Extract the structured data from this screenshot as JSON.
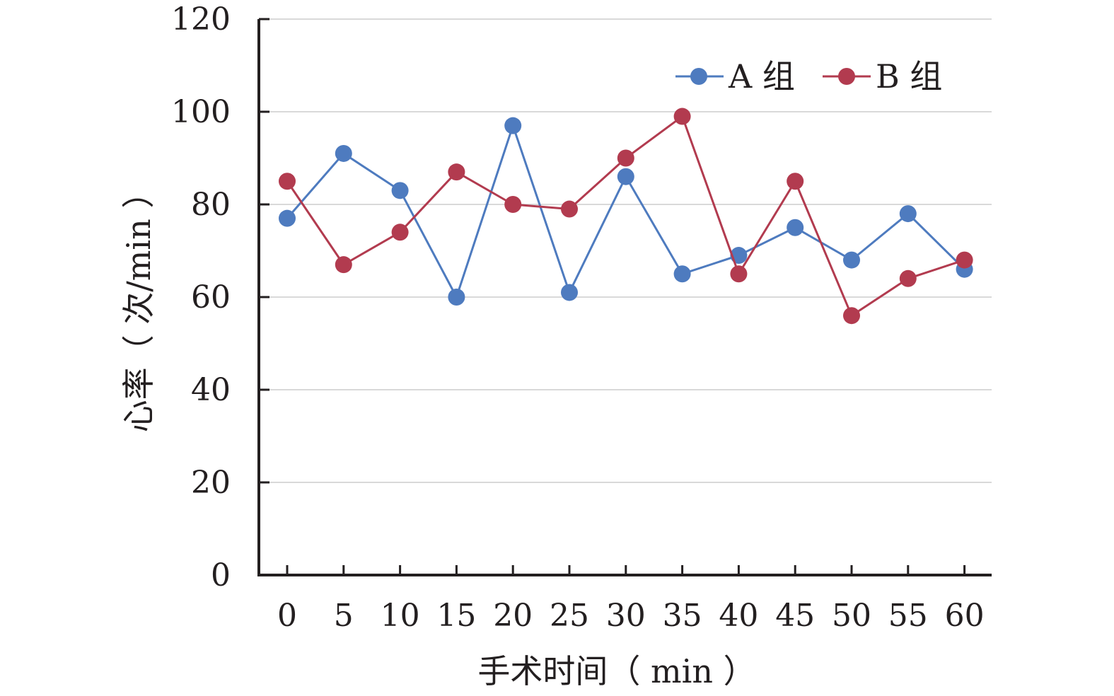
{
  "chart_data": {
    "type": "line",
    "x": [
      0,
      5,
      10,
      15,
      20,
      25,
      30,
      35,
      40,
      45,
      50,
      55,
      60
    ],
    "xtick_labels": [
      "0",
      "5",
      "10",
      "15",
      "20",
      "25",
      "30",
      "35",
      "40",
      "45",
      "50",
      "55",
      "60"
    ],
    "series": [
      {
        "name": "A 组",
        "color": "#4e7bbf",
        "values": [
          77,
          91,
          83,
          60,
          97,
          61,
          86,
          65,
          69,
          75,
          68,
          78,
          66
        ]
      },
      {
        "name": "B 组",
        "color": "#b23b4f",
        "values": [
          85,
          67,
          74,
          87,
          80,
          79,
          90,
          99,
          65,
          85,
          56,
          64,
          68
        ]
      }
    ],
    "xlabel": "手术时间（ min ）",
    "ylabel": "心率（ 次/min ）",
    "ylim": [
      0,
      120
    ],
    "yticks": [
      0,
      20,
      40,
      60,
      80,
      100,
      120
    ],
    "ytick_labels": [
      "0",
      "20",
      "40",
      "60",
      "80",
      "100",
      "120"
    ],
    "grid": true,
    "legend_position": "top-right",
    "colors": {
      "axis": "#231f20",
      "grid": "#d9d9d9"
    }
  }
}
